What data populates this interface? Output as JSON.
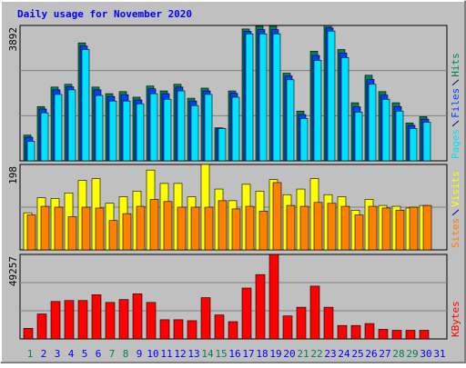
{
  "chart_data": [
    {
      "type": "bar",
      "title": "Daily usage for November 2020",
      "ylim": [
        0,
        3892
      ],
      "yticks": [
        3892
      ],
      "series": [
        {
          "name": "Hits",
          "color": "#00805c",
          "values": [
            740,
            1560,
            2120,
            2200,
            3390,
            2120,
            1930,
            1990,
            1830,
            2150,
            2010,
            2200,
            1800,
            2090,
            950,
            2010,
            3790,
            3870,
            3870,
            2520,
            1430,
            3150,
            3892,
            3200,
            1670,
            2460,
            1990,
            1670,
            1090,
            1270,
            null
          ]
        },
        {
          "name": "Files",
          "color": "#0040ff",
          "values": [
            680,
            1490,
            2040,
            2130,
            3300,
            2040,
            1850,
            1900,
            1750,
            2070,
            1930,
            2120,
            1720,
            2010,
            940,
            1940,
            3720,
            3770,
            3770,
            2440,
            1330,
            3030,
            3820,
            3100,
            1550,
            2340,
            1890,
            1560,
            1020,
            1200,
            null
          ]
        },
        {
          "name": "Pages",
          "color": "#00e0ff",
          "values": [
            560,
            1380,
            1910,
            2040,
            3200,
            1880,
            1720,
            1720,
            1640,
            1930,
            1770,
            2010,
            1590,
            1910,
            930,
            1830,
            3650,
            3650,
            3650,
            2330,
            1220,
            2890,
            3730,
            2970,
            1400,
            2200,
            1770,
            1430,
            930,
            1110,
            null
          ]
        }
      ]
    },
    {
      "type": "bar",
      "ylim": [
        0,
        198
      ],
      "yticks": [
        198
      ],
      "series": [
        {
          "name": "Visits",
          "color": "#ffff00",
          "values": [
            86,
            121,
            119,
            132,
            161,
            165,
            108,
            123,
            136,
            185,
            154,
            154,
            123,
            198,
            141,
            114,
            152,
            136,
            163,
            128,
            141,
            165,
            128,
            123,
            92,
            117,
            103,
            101,
            97,
            103,
            null
          ]
        },
        {
          "name": "Sites",
          "color": "#ff8000",
          "values": [
            81,
            101,
            99,
            77,
            99,
            97,
            68,
            84,
            101,
            117,
            112,
            99,
            99,
            99,
            114,
            95,
            101,
            90,
            156,
            103,
            101,
            110,
            108,
            101,
            81,
            101,
            97,
            92,
            99,
            103,
            null
          ]
        }
      ]
    },
    {
      "type": "bar",
      "ylim": [
        0,
        49257
      ],
      "yticks": [
        49257
      ],
      "categories": [
        "1",
        "2",
        "3",
        "4",
        "5",
        "6",
        "7",
        "8",
        "9",
        "10",
        "11",
        "12",
        "13",
        "14",
        "15",
        "16",
        "17",
        "18",
        "19",
        "20",
        "21",
        "22",
        "23",
        "24",
        "25",
        "26",
        "27",
        "28",
        "29",
        "30",
        "31"
      ],
      "category_colors": [
        "#00805c",
        "#0000ff",
        "#0000ff",
        "#0000ff",
        "#0000ff",
        "#0000ff",
        "#00805c",
        "#00805c",
        "#0000ff",
        "#0000ff",
        "#0000ff",
        "#0000ff",
        "#0000ff",
        "#00805c",
        "#00805c",
        "#0000ff",
        "#0000ff",
        "#0000ff",
        "#0000ff",
        "#0000ff",
        "#00805c",
        "#00805c",
        "#0000ff",
        "#0000ff",
        "#0000ff",
        "#0000ff",
        "#0000ff",
        "#00805c",
        "#00805c",
        "#0000ff",
        "#0000ff"
      ],
      "series": [
        {
          "name": "KBytes",
          "color": "#ff0000",
          "values": [
            6160,
            14550,
            21830,
            22390,
            22390,
            25750,
            21270,
            22950,
            26310,
            21270,
            11190,
            11190,
            10630,
            24070,
            13990,
            10080,
            29660,
            37500,
            49257,
            13430,
            18470,
            30780,
            18470,
            7840,
            7840,
            8960,
            5600,
            5040,
            5040,
            5040,
            null
          ]
        }
      ]
    }
  ]
}
